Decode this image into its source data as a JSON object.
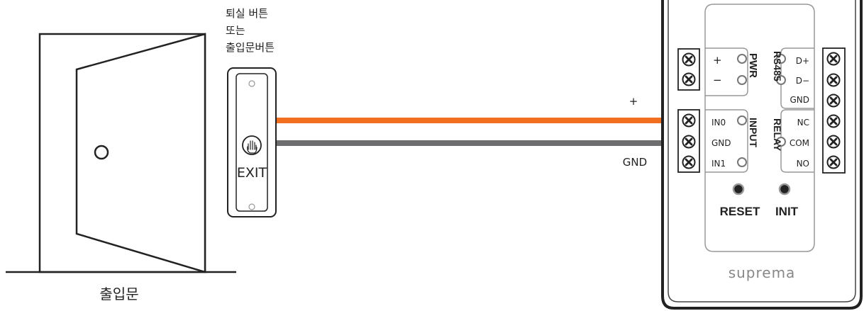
{
  "door": {
    "label": "출입문"
  },
  "exit_button": {
    "caption_lines": [
      "퇴실 버튼",
      "또는",
      "출입문버튼"
    ],
    "face_label": "EXIT",
    "icon": "hand-push-icon"
  },
  "wires": {
    "plus_label": "+",
    "gnd_label": "GND",
    "colors": {
      "plus": "#f26f21",
      "gnd": "#6d6d6f"
    }
  },
  "device": {
    "brand": "suprema",
    "power_block": {
      "title": "PWR",
      "terminals": [
        "+",
        "−"
      ]
    },
    "rs485_block": {
      "title": "RS485",
      "terminals": [
        "D+",
        "D−",
        "GND"
      ]
    },
    "input_block": {
      "title": "INPUT",
      "terminals": [
        "IN0",
        "GND",
        "IN1"
      ]
    },
    "relay_block": {
      "title": "RELAY",
      "terminals": [
        "NC",
        "COM",
        "NO"
      ]
    },
    "buttons": {
      "reset": "RESET",
      "init": "INIT"
    },
    "screw_icon": "screw-terminal-icon"
  }
}
